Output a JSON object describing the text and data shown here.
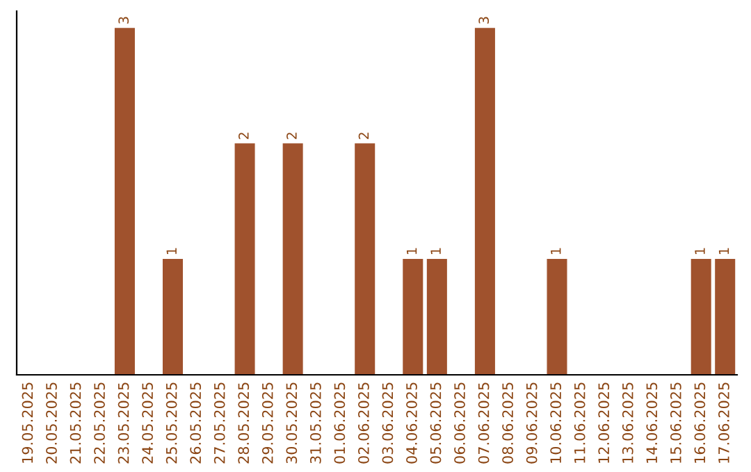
{
  "chart_data": {
    "type": "bar",
    "categories": [
      "19.05.2025",
      "20.05.2025",
      "21.05.2025",
      "22.05.2025",
      "23.05.2025",
      "24.05.2025",
      "25.05.2025",
      "26.05.2025",
      "27.05.2025",
      "28.05.2025",
      "29.05.2025",
      "30.05.2025",
      "31.05.2025",
      "01.06.2025",
      "02.06.2025",
      "03.06.2025",
      "04.06.2025",
      "05.06.2025",
      "06.06.2025",
      "07.06.2025",
      "08.06.2025",
      "09.06.2025",
      "10.06.2025",
      "11.06.2025",
      "12.06.2025",
      "13.06.2025",
      "14.06.2025",
      "15.06.2025",
      "16.06.2025",
      "17.06.2025"
    ],
    "values": [
      0,
      0,
      0,
      0,
      3,
      0,
      1,
      0,
      0,
      2,
      0,
      2,
      0,
      0,
      2,
      0,
      1,
      1,
      0,
      3,
      0,
      0,
      1,
      0,
      0,
      0,
      0,
      0,
      1,
      1
    ],
    "value_labels": [
      null,
      null,
      null,
      null,
      "3",
      null,
      "1",
      null,
      null,
      "2",
      null,
      "2",
      null,
      null,
      "2",
      null,
      "1",
      "1",
      null,
      "3",
      null,
      null,
      "1",
      null,
      null,
      null,
      null,
      null,
      "1",
      "1"
    ],
    "color": "#a0522d",
    "tick_labels": "x",
    "grid": false,
    "legend": false
  }
}
